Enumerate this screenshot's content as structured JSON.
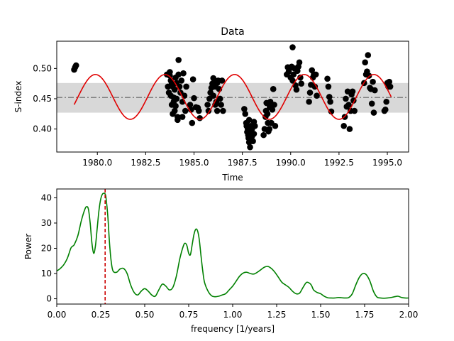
{
  "chart_data": [
    {
      "type": "scatter",
      "title": "Data",
      "xlabel": "Time",
      "ylabel": "S-index",
      "xlim": [
        1977.9,
        1996.1
      ],
      "ylim": [
        0.362,
        0.545
      ],
      "xticks": [
        1980.0,
        1982.5,
        1985.0,
        1987.5,
        1990.0,
        1992.5,
        1995.0
      ],
      "xtick_labels": [
        "1980.0",
        "1982.5",
        "1985.0",
        "1987.5",
        "1990.0",
        "1992.5",
        "1995.0"
      ],
      "yticks": [
        0.4,
        0.45,
        0.5
      ],
      "ytick_labels": [
        "0.40",
        "0.45",
        "0.50"
      ],
      "mean_line": {
        "value": 0.452,
        "style": "dash-dot",
        "color": "#808080"
      },
      "band": {
        "low": 0.427,
        "high": 0.476,
        "color": "#d8d8d8"
      },
      "model": {
        "color": "#e00000",
        "t_start": 1978.8,
        "t_end": 1995.2,
        "mean": 0.453,
        "amplitude": 0.037,
        "period": 3.6,
        "phase_ref": 1979.0
      },
      "points_color": "#000000",
      "points": [
        [
          1978.8,
          0.498
        ],
        [
          1978.85,
          0.502
        ],
        [
          1978.9,
          0.505
        ],
        [
          1983.6,
          0.49
        ],
        [
          1983.65,
          0.47
        ],
        [
          1983.7,
          0.46
        ],
        [
          1983.75,
          0.488
        ],
        [
          1983.8,
          0.48
        ],
        [
          1983.85,
          0.475
        ],
        [
          1983.9,
          0.47
        ],
        [
          1983.95,
          0.445
        ],
        [
          1983.75,
          0.494
        ],
        [
          1983.8,
          0.455
        ],
        [
          1983.85,
          0.44
        ],
        [
          1983.9,
          0.425
        ],
        [
          1983.95,
          0.452
        ],
        [
          1984.0,
          0.465
        ],
        [
          1984.0,
          0.43
        ],
        [
          1984.05,
          0.438
        ],
        [
          1984.05,
          0.485
        ],
        [
          1984.1,
          0.476
        ],
        [
          1984.1,
          0.45
        ],
        [
          1984.15,
          0.42
        ],
        [
          1984.15,
          0.415
        ],
        [
          1984.2,
          0.514
        ],
        [
          1984.2,
          0.49
        ],
        [
          1984.25,
          0.47
        ],
        [
          1984.3,
          0.46
        ],
        [
          1984.35,
          0.48
        ],
        [
          1984.4,
          0.445
        ],
        [
          1984.4,
          0.42
        ],
        [
          1984.45,
          0.492
        ],
        [
          1984.5,
          0.455
        ],
        [
          1984.55,
          0.43
        ],
        [
          1984.6,
          0.47
        ],
        [
          1984.8,
          0.44
        ],
        [
          1984.85,
          0.432
        ],
        [
          1984.9,
          0.41
        ],
        [
          1984.95,
          0.482
        ],
        [
          1985.0,
          0.451
        ],
        [
          1985.1,
          0.436
        ],
        [
          1985.2,
          0.435
        ],
        [
          1985.25,
          0.43
        ],
        [
          1985.3,
          0.418
        ],
        [
          1985.7,
          0.44
        ],
        [
          1985.75,
          0.43
        ],
        [
          1985.8,
          0.45
        ],
        [
          1985.85,
          0.46
        ],
        [
          1985.9,
          0.468
        ],
        [
          1985.95,
          0.475
        ],
        [
          1986.0,
          0.484
        ],
        [
          1986.0,
          0.455
        ],
        [
          1986.05,
          0.478
        ],
        [
          1986.1,
          0.47
        ],
        [
          1986.1,
          0.44
        ],
        [
          1986.15,
          0.445
        ],
        [
          1986.2,
          0.476
        ],
        [
          1986.2,
          0.43
        ],
        [
          1986.25,
          0.48
        ],
        [
          1986.3,
          0.466
        ],
        [
          1986.35,
          0.45
        ],
        [
          1986.4,
          0.44
        ],
        [
          1986.45,
          0.48
        ],
        [
          1986.5,
          0.43
        ],
        [
          1987.6,
          0.433
        ],
        [
          1987.65,
          0.425
        ],
        [
          1987.7,
          0.41
        ],
        [
          1987.72,
          0.405
        ],
        [
          1987.75,
          0.395
        ],
        [
          1987.78,
          0.4
        ],
        [
          1987.8,
          0.39
        ],
        [
          1987.82,
          0.385
        ],
        [
          1987.85,
          0.415
        ],
        [
          1987.85,
          0.378
        ],
        [
          1987.9,
          0.37
        ],
        [
          1987.92,
          0.405
        ],
        [
          1987.95,
          0.395
        ],
        [
          1988.0,
          0.388
        ],
        [
          1988.0,
          0.4
        ],
        [
          1988.05,
          0.38
        ],
        [
          1988.1,
          0.392
        ],
        [
          1988.1,
          0.412
        ],
        [
          1988.15,
          0.405
        ],
        [
          1988.6,
          0.39
        ],
        [
          1988.65,
          0.4
        ],
        [
          1988.7,
          0.42
        ],
        [
          1988.72,
          0.43
        ],
        [
          1988.75,
          0.443
        ],
        [
          1988.8,
          0.425
        ],
        [
          1988.82,
          0.41
        ],
        [
          1988.85,
          0.396
        ],
        [
          1988.9,
          0.4
        ],
        [
          1988.92,
          0.436
        ],
        [
          1988.95,
          0.445
        ],
        [
          1989.0,
          0.41
        ],
        [
          1989.05,
          0.432
        ],
        [
          1989.1,
          0.466
        ],
        [
          1989.15,
          0.44
        ],
        [
          1989.2,
          0.405
        ],
        [
          1989.8,
          0.49
        ],
        [
          1989.85,
          0.502
        ],
        [
          1989.9,
          0.495
        ],
        [
          1989.95,
          0.5
        ],
        [
          1990.0,
          0.485
        ],
        [
          1990.05,
          0.503
        ],
        [
          1990.1,
          0.48
        ],
        [
          1990.1,
          0.535
        ],
        [
          1990.15,
          0.49
        ],
        [
          1990.2,
          0.5
        ],
        [
          1990.25,
          0.472
        ],
        [
          1990.3,
          0.465
        ],
        [
          1990.35,
          0.496
        ],
        [
          1990.4,
          0.503
        ],
        [
          1990.45,
          0.51
        ],
        [
          1990.5,
          0.485
        ],
        [
          1990.55,
          0.475
        ],
        [
          1990.95,
          0.445
        ],
        [
          1991.0,
          0.46
        ],
        [
          1991.05,
          0.473
        ],
        [
          1991.1,
          0.497
        ],
        [
          1991.15,
          0.485
        ],
        [
          1991.2,
          0.49
        ],
        [
          1991.25,
          0.47
        ],
        [
          1991.3,
          0.49
        ],
        [
          1991.35,
          0.455
        ],
        [
          1991.9,
          0.483
        ],
        [
          1991.95,
          0.47
        ],
        [
          1992.0,
          0.453
        ],
        [
          1992.05,
          0.445
        ],
        [
          1992.1,
          0.429
        ],
        [
          1992.75,
          0.405
        ],
        [
          1992.8,
          0.42
        ],
        [
          1992.85,
          0.45
        ],
        [
          1992.9,
          0.437
        ],
        [
          1992.95,
          0.462
        ],
        [
          1993.0,
          0.44
        ],
        [
          1993.05,
          0.4
        ],
        [
          1993.1,
          0.43
        ],
        [
          1993.15,
          0.457
        ],
        [
          1993.2,
          0.462
        ],
        [
          1993.25,
          0.447
        ],
        [
          1993.3,
          0.43
        ],
        [
          1993.8,
          0.476
        ],
        [
          1993.85,
          0.51
        ],
        [
          1993.9,
          0.49
        ],
        [
          1993.95,
          0.495
        ],
        [
          1994.0,
          0.522
        ],
        [
          1994.05,
          0.488
        ],
        [
          1994.1,
          0.468
        ],
        [
          1994.15,
          0.466
        ],
        [
          1994.2,
          0.442
        ],
        [
          1994.25,
          0.478
        ],
        [
          1994.3,
          0.427
        ],
        [
          1994.35,
          0.464
        ],
        [
          1994.85,
          0.43
        ],
        [
          1994.9,
          0.432
        ],
        [
          1994.95,
          0.445
        ],
        [
          1995.0,
          0.476
        ],
        [
          1995.05,
          0.47
        ],
        [
          1995.1,
          0.478
        ],
        [
          1995.15,
          0.47
        ]
      ]
    },
    {
      "type": "line",
      "title": "",
      "xlabel": "frequency [1/years]",
      "ylabel": "Power",
      "xlim": [
        0.0,
        2.0
      ],
      "ylim": [
        -2.1,
        43.5
      ],
      "xticks": [
        0.0,
        0.25,
        0.5,
        0.75,
        1.0,
        1.25,
        1.5,
        1.75,
        2.0
      ],
      "xtick_labels": [
        "0.00",
        "0.25",
        "0.50",
        "0.75",
        "1.00",
        "1.25",
        "1.50",
        "1.75",
        "2.00"
      ],
      "yticks": [
        0,
        10,
        20,
        30,
        40
      ],
      "ytick_labels": [
        "0",
        "10",
        "20",
        "30",
        "40"
      ],
      "series_color": "#008000",
      "peak_marker": {
        "x": 0.275,
        "color": "#cc0000",
        "style": "dashed"
      },
      "x": [
        0.0,
        0.02,
        0.04,
        0.06,
        0.08,
        0.09,
        0.1,
        0.12,
        0.14,
        0.16,
        0.17,
        0.18,
        0.19,
        0.2,
        0.21,
        0.22,
        0.23,
        0.24,
        0.25,
        0.26,
        0.27,
        0.275,
        0.28,
        0.29,
        0.3,
        0.31,
        0.32,
        0.34,
        0.36,
        0.38,
        0.4,
        0.42,
        0.44,
        0.46,
        0.48,
        0.5,
        0.52,
        0.54,
        0.56,
        0.58,
        0.6,
        0.62,
        0.64,
        0.66,
        0.68,
        0.7,
        0.72,
        0.73,
        0.74,
        0.75,
        0.76,
        0.77,
        0.78,
        0.79,
        0.8,
        0.81,
        0.82,
        0.83,
        0.84,
        0.86,
        0.88,
        0.9,
        0.92,
        0.94,
        0.96,
        0.98,
        1.0,
        1.02,
        1.04,
        1.06,
        1.08,
        1.1,
        1.12,
        1.14,
        1.16,
        1.18,
        1.2,
        1.22,
        1.24,
        1.26,
        1.28,
        1.3,
        1.32,
        1.34,
        1.36,
        1.38,
        1.4,
        1.42,
        1.44,
        1.45,
        1.46,
        1.48,
        1.5,
        1.52,
        1.54,
        1.56,
        1.58,
        1.6,
        1.62,
        1.64,
        1.66,
        1.68,
        1.7,
        1.72,
        1.74,
        1.76,
        1.78,
        1.8,
        1.82,
        1.84,
        1.86,
        1.88,
        1.9,
        1.92,
        1.94,
        1.96,
        1.98,
        2.0
      ],
      "y": [
        11.0,
        12.0,
        13.5,
        16.0,
        20.0,
        20.8,
        21.5,
        25.0,
        31.0,
        35.5,
        36.5,
        35.5,
        30.0,
        22.0,
        18.0,
        21.0,
        28.0,
        35.0,
        39.5,
        41.5,
        41.8,
        41.5,
        40.0,
        33.0,
        22.0,
        14.5,
        11.0,
        10.5,
        11.8,
        12.0,
        10.0,
        5.5,
        2.5,
        1.5,
        3.0,
        4.0,
        3.0,
        1.5,
        1.0,
        3.5,
        5.8,
        5.0,
        3.5,
        4.5,
        9.0,
        16.0,
        21.0,
        22.0,
        21.0,
        18.0,
        17.5,
        21.5,
        25.5,
        27.5,
        27.0,
        23.5,
        17.0,
        11.0,
        6.5,
        3.0,
        1.2,
        0.8,
        1.0,
        1.5,
        2.0,
        3.5,
        5.0,
        7.0,
        9.0,
        10.2,
        10.5,
        10.0,
        9.8,
        10.5,
        11.5,
        12.5,
        12.8,
        12.0,
        10.5,
        8.5,
        6.5,
        5.5,
        4.5,
        3.0,
        2.0,
        2.2,
        4.5,
        6.5,
        6.0,
        5.0,
        3.5,
        2.5,
        2.0,
        1.0,
        0.4,
        0.3,
        0.3,
        0.5,
        0.4,
        0.3,
        0.5,
        2.0,
        5.5,
        8.5,
        10.0,
        9.5,
        7.0,
        3.0,
        0.7,
        0.3,
        0.2,
        0.3,
        0.5,
        0.8,
        1.0,
        0.5,
        0.3,
        0.3
      ]
    }
  ]
}
